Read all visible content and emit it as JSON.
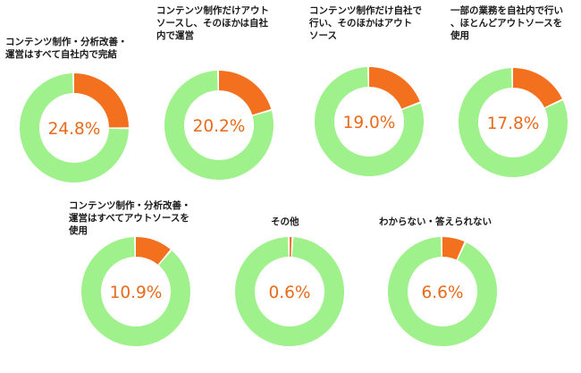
{
  "colors": {
    "share": "#f2701e",
    "rest": "#9ef18b",
    "pct_text": "#e86a1a"
  },
  "chart_data": [
    {
      "type": "pie",
      "title": "コンテンツ制作・分析改善・\n運営はすべて自社内で完結",
      "values": [
        24.8
      ],
      "value_labels": [
        "24.8%"
      ]
    },
    {
      "type": "pie",
      "title": "コンテンツ制作だけアウト\nソースし、そのほかは自社\n内で運営",
      "values": [
        20.2
      ],
      "value_labels": [
        "20.2%"
      ]
    },
    {
      "type": "pie",
      "title": "コンテンツ制作だけ自社で\n行い、そのほかはアウト\nソース",
      "values": [
        19.0
      ],
      "value_labels": [
        "19.0%"
      ]
    },
    {
      "type": "pie",
      "title": "一部の業務を自社内で行い\n、ほとんどアウトソースを\n使用",
      "values": [
        17.8
      ],
      "value_labels": [
        "17.8%"
      ]
    },
    {
      "type": "pie",
      "title": "コンテンツ制作・分析改善・\n運営はすべてアウトソースを\n使用",
      "values": [
        10.9
      ],
      "value_labels": [
        "10.9%"
      ]
    },
    {
      "type": "pie",
      "title": "その他",
      "values": [
        0.6
      ],
      "value_labels": [
        "0.6%"
      ]
    },
    {
      "type": "pie",
      "title": "わからない・答えられない",
      "values": [
        6.6
      ],
      "value_labels": [
        "6.6%"
      ]
    }
  ]
}
